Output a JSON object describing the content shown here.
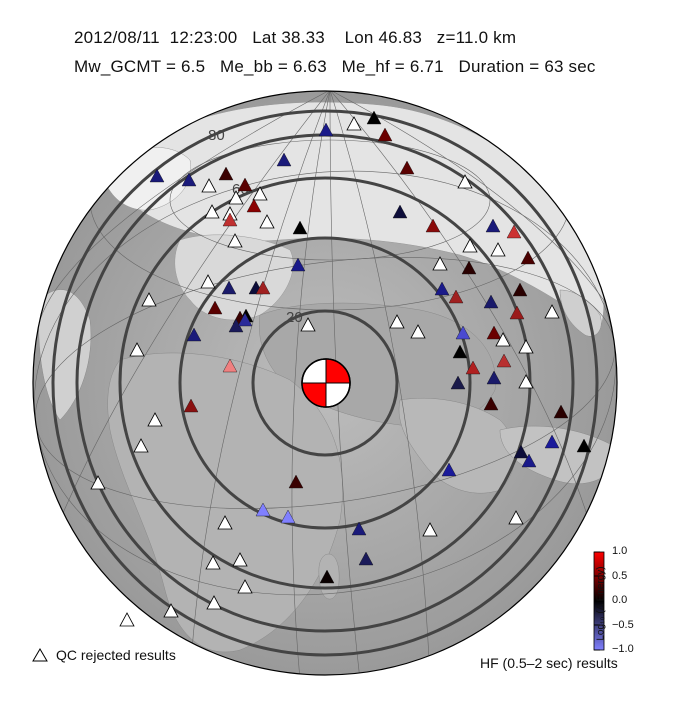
{
  "header": {
    "line1": "2012/08/11  12:23:00   Lat 38.33    Lon 46.83   z=11.0 km",
    "line2": "Mw_GCMT = 6.5   Me_bb = 6.63   Me_hf = 6.71   Duration = 63 sec"
  },
  "distance_rings": {
    "labels": [
      "20",
      "60",
      "80"
    ]
  },
  "colorbar": {
    "title": "Log₁₀ (Δ Energy)",
    "ticks": [
      "1.0",
      "0.5",
      "0.0",
      "−0.5",
      "−1.0"
    ],
    "colors": {
      "high": "#ff0000",
      "mid": "#000000",
      "low": "#8080ff"
    }
  },
  "legend": {
    "qc_rejected": "QC rejected results",
    "hf_results": "HF (0.5–2 sec) results"
  },
  "stations": [
    {
      "id": "s1",
      "c": "#1a1a8a"
    },
    {
      "id": "s2",
      "c": "#ffffff"
    },
    {
      "id": "s3",
      "c": "#000000"
    },
    {
      "id": "s4",
      "c": "#6b0000"
    },
    {
      "id": "s5",
      "c": "#1a1a7a"
    },
    {
      "id": "s6",
      "c": "#1a1a7a"
    },
    {
      "id": "s7",
      "c": "#3a0000"
    },
    {
      "id": "s8",
      "c": "#1a1a7a"
    },
    {
      "id": "s9",
      "c": "#ffffff"
    },
    {
      "id": "s10",
      "c": "#5a0000"
    },
    {
      "id": "s11",
      "c": "#ffffff"
    },
    {
      "id": "s12",
      "c": "#ffffff"
    },
    {
      "id": "s13",
      "c": "#8a0000"
    },
    {
      "id": "s14",
      "c": "#ffffff"
    },
    {
      "id": "s15",
      "c": "#c03030"
    },
    {
      "id": "s16",
      "c": "#ffffff"
    },
    {
      "id": "s17",
      "c": "#ffffff"
    },
    {
      "id": "s18",
      "c": "#000000"
    },
    {
      "id": "s19",
      "c": "#ffffff"
    },
    {
      "id": "s20",
      "c": "#ffffff"
    },
    {
      "id": "s21",
      "c": "#0d0d3a"
    },
    {
      "id": "s22",
      "c": "#5a0000"
    },
    {
      "id": "s23",
      "c": "#8a0a0a"
    },
    {
      "id": "s24",
      "c": "#cc3333"
    },
    {
      "id": "s25",
      "c": "#ffffff"
    },
    {
      "id": "s26",
      "c": "#ffffff"
    },
    {
      "id": "s27",
      "c": "#1a1a7a"
    },
    {
      "id": "s28",
      "c": "#4a0000"
    },
    {
      "id": "s29",
      "c": "#2a0000"
    },
    {
      "id": "s30",
      "c": "#0d0d3a"
    },
    {
      "id": "s31",
      "c": "#1a1a6a"
    },
    {
      "id": "s32",
      "c": "#a02020"
    },
    {
      "id": "s33",
      "c": "#5a0000"
    },
    {
      "id": "s34",
      "c": "#000000"
    },
    {
      "id": "s35",
      "c": "#3a0000"
    },
    {
      "id": "s36",
      "c": "#ffffff"
    },
    {
      "id": "s37",
      "c": "#ffffff"
    },
    {
      "id": "s38",
      "c": "#1a1a8a"
    },
    {
      "id": "s39",
      "c": "#1a1a5a"
    },
    {
      "id": "s40",
      "c": "#2a2a9a"
    },
    {
      "id": "s41",
      "c": "#ffffff"
    },
    {
      "id": "s42",
      "c": "#1a1a7a"
    },
    {
      "id": "s43",
      "c": "#ffffff"
    },
    {
      "id": "s44",
      "c": "#ffffff"
    },
    {
      "id": "s45",
      "c": "#1a1a8a"
    },
    {
      "id": "s46",
      "c": "#ffffff"
    },
    {
      "id": "s47",
      "c": "#4a4ad0"
    },
    {
      "id": "s48",
      "c": "#6a0000"
    },
    {
      "id": "s49",
      "c": "#a02020"
    },
    {
      "id": "s50",
      "c": "#ffffff"
    },
    {
      "id": "s51",
      "c": "#1a1a6a"
    },
    {
      "id": "s52",
      "c": "#2a0000"
    },
    {
      "id": "s53",
      "c": "#9a1a1a"
    },
    {
      "id": "s54",
      "c": "#000000"
    },
    {
      "id": "s55",
      "c": "#b02020"
    },
    {
      "id": "s56",
      "c": "#ffffff"
    },
    {
      "id": "s57",
      "c": "#ffffff"
    },
    {
      "id": "s58",
      "c": "#f08080"
    },
    {
      "id": "s59",
      "c": "#ffffff"
    },
    {
      "id": "s60",
      "c": "#1a1a4a"
    },
    {
      "id": "s61",
      "c": "#1a1a6a"
    },
    {
      "id": "s62",
      "c": "#b83030"
    },
    {
      "id": "s63",
      "c": "#ffffff"
    },
    {
      "id": "s64",
      "c": "#8a1010"
    },
    {
      "id": "s65",
      "c": "#ffffff"
    },
    {
      "id": "s66",
      "c": "#ffffff"
    },
    {
      "id": "s67",
      "c": "#2a0000"
    },
    {
      "id": "s68",
      "c": "#0d0d3a"
    },
    {
      "id": "s69",
      "c": "#1a1a9a"
    },
    {
      "id": "s70",
      "c": "#000000"
    },
    {
      "id": "s71",
      "c": "#1a1a8a"
    },
    {
      "id": "s72",
      "c": "#3a0000"
    },
    {
      "id": "s73",
      "c": "#1a1a9a"
    },
    {
      "id": "s74",
      "c": "#3a0000"
    },
    {
      "id": "s75",
      "c": "#8080ff"
    },
    {
      "id": "s76",
      "c": "#8080ff"
    },
    {
      "id": "s77",
      "c": "#1a1a7a"
    },
    {
      "id": "s78",
      "c": "#ffffff"
    },
    {
      "id": "s79",
      "c": "#ffffff"
    },
    {
      "id": "s80",
      "c": "#ffffff"
    },
    {
      "id": "s81",
      "c": "#ffffff"
    },
    {
      "id": "s82",
      "c": "#1a1a5a"
    },
    {
      "id": "s83",
      "c": "#0a0000"
    },
    {
      "id": "s84",
      "c": "#ffffff"
    },
    {
      "id": "s85",
      "c": "#ffffff"
    },
    {
      "id": "s86",
      "c": "#ffffff"
    },
    {
      "id": "s87",
      "c": "#ffffff"
    },
    {
      "id": "s88",
      "c": "#ffffff"
    },
    {
      "id": "s89",
      "c": "#ffffff"
    }
  ]
}
